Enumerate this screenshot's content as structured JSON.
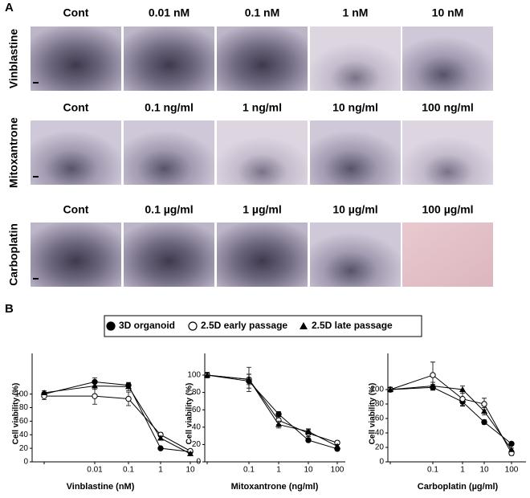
{
  "panel_a": {
    "label": "A",
    "rows": [
      {
        "drug": "Vinblastine",
        "columns": [
          "Cont",
          "0.01 nM",
          "0.1 nM",
          "1 nM",
          "10 nM"
        ]
      },
      {
        "drug": "Mitoxantrone",
        "columns": [
          "Cont",
          "0.1 ng/ml",
          "1 ng/ml",
          "10 ng/ml",
          "100 ng/ml"
        ]
      },
      {
        "drug": "Carboplatin",
        "columns": [
          "Cont",
          "0.1 µg/ml",
          "1 µg/ml",
          "10 µg/ml",
          "100 µg/ml"
        ]
      }
    ]
  },
  "panel_b_label": "B",
  "chart_data": [
    {
      "type": "line",
      "x_label": "Vinblastine (nM)",
      "y_label": "Cell viability (%)",
      "categories": [
        null,
        "0.01",
        "0.1",
        "1",
        "10"
      ],
      "ylim": [
        0,
        160
      ],
      "yticks": [
        0,
        20,
        40,
        60,
        80,
        100
      ],
      "series": [
        {
          "name": "3D organoid",
          "color": "#000000",
          "marker": "filled-circle",
          "values": [
            100,
            118,
            113,
            20,
            15
          ],
          "errors": [
            3,
            6,
            4,
            2,
            2
          ]
        },
        {
          "name": "2.5D early passage",
          "color": "#000000",
          "marker": "open-circle",
          "values": [
            97,
            97,
            93,
            40,
            16
          ],
          "errors": [
            5,
            12,
            10,
            3,
            2
          ]
        },
        {
          "name": "2.5D late passage",
          "color": "#000000",
          "marker": "filled-triangle",
          "values": [
            102,
            112,
            111,
            35,
            12
          ],
          "errors": [
            3,
            5,
            6,
            3,
            2
          ]
        }
      ]
    },
    {
      "type": "line",
      "x_label": "Mitoxantrone (ng/ml)",
      "y_label": "Cell viability (%)",
      "categories": [
        null,
        "0.1",
        "1",
        "10",
        "100"
      ],
      "ylim": [
        0,
        125
      ],
      "yticks": [
        0,
        20,
        40,
        60,
        80,
        100
      ],
      "series": [
        {
          "name": "3D organoid",
          "color": "#000000",
          "marker": "filled-circle",
          "values": [
            100,
            93,
            55,
            25,
            15
          ],
          "errors": [
            3,
            8,
            3,
            2,
            2
          ]
        },
        {
          "name": "2.5D early passage",
          "color": "#000000",
          "marker": "open-circle",
          "values": [
            100,
            95,
            48,
            33,
            22
          ],
          "errors": [
            3,
            14,
            5,
            4,
            2
          ]
        },
        {
          "name": "2.5D late passage",
          "color": "#000000",
          "marker": "filled-triangle",
          "values": [
            100,
            95,
            43,
            35,
            18
          ],
          "errors": [
            3,
            6,
            4,
            3,
            2
          ]
        }
      ]
    },
    {
      "type": "line",
      "x_label": "Carboplatin (µg/ml)",
      "y_label": "Cell viability (%)",
      "categories": [
        null,
        "0.1",
        "1",
        "10",
        "100"
      ],
      "ylim": [
        0,
        150
      ],
      "yticks": [
        0,
        20,
        40,
        60,
        80,
        100
      ],
      "series": [
        {
          "name": "3D organoid",
          "color": "#000000",
          "marker": "filled-circle",
          "values": [
            100,
            103,
            83,
            55,
            25
          ],
          "errors": [
            3,
            4,
            5,
            3,
            2
          ]
        },
        {
          "name": "2.5D early passage",
          "color": "#000000",
          "marker": "open-circle",
          "values": [
            100,
            120,
            87,
            80,
            12
          ],
          "errors": [
            3,
            18,
            10,
            8,
            3
          ]
        },
        {
          "name": "2.5D late passage",
          "color": "#000000",
          "marker": "filled-triangle",
          "values": [
            100,
            105,
            100,
            70,
            17
          ],
          "errors": [
            3,
            5,
            5,
            5,
            2
          ]
        }
      ]
    }
  ]
}
